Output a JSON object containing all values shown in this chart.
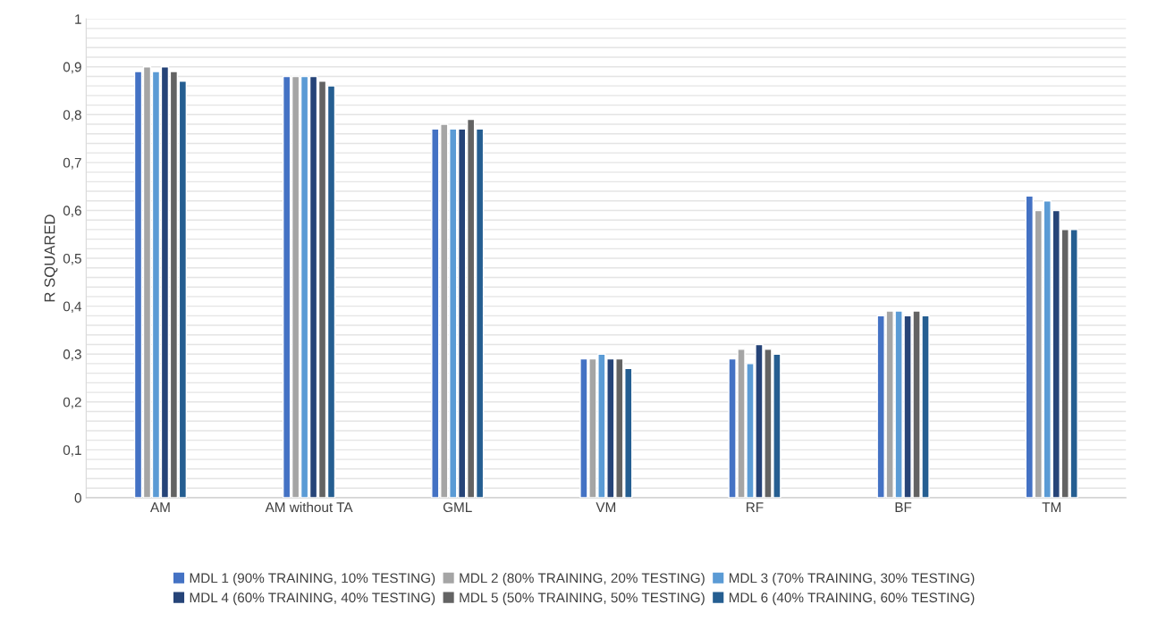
{
  "chart_data": {
    "type": "bar",
    "ylabel": "R SQUARED",
    "categories": [
      "AM",
      "AM without TA",
      "GML",
      "VM",
      "RF",
      "BF",
      "TM"
    ],
    "series": [
      {
        "name": "MDL 1 (90% TRAINING, 10% TESTING)",
        "color": "#4472c4",
        "values": [
          0.89,
          0.88,
          0.77,
          0.29,
          0.29,
          0.38,
          0.63
        ]
      },
      {
        "name": "MDL 2 (80% TRAINING, 20% TESTING)",
        "color": "#a5a5a5",
        "values": [
          0.9,
          0.88,
          0.78,
          0.29,
          0.31,
          0.39,
          0.6
        ]
      },
      {
        "name": "MDL 3 (70% TRAINING, 30% TESTING)",
        "color": "#5b9bd5",
        "values": [
          0.89,
          0.88,
          0.77,
          0.3,
          0.28,
          0.39,
          0.62
        ]
      },
      {
        "name": "MDL 4 (60% TRAINING, 40% TESTING)",
        "color": "#264478",
        "values": [
          0.9,
          0.88,
          0.77,
          0.29,
          0.32,
          0.38,
          0.6
        ]
      },
      {
        "name": "MDL 5 (50% TRAINING, 50% TESTING)",
        "color": "#636363",
        "values": [
          0.89,
          0.87,
          0.79,
          0.29,
          0.31,
          0.39,
          0.56
        ]
      },
      {
        "name": "MDL 6 (40% TRAINING, 60% TESTING)",
        "color": "#255e91",
        "values": [
          0.87,
          0.86,
          0.77,
          0.27,
          0.3,
          0.38,
          0.56
        ]
      }
    ],
    "ylim": [
      0,
      1
    ],
    "yticks": [
      {
        "value": 0,
        "label": "0"
      },
      {
        "value": 0.02,
        "label": null
      },
      {
        "value": 0.04,
        "label": null
      },
      {
        "value": 0.06,
        "label": null
      },
      {
        "value": 0.08,
        "label": null
      },
      {
        "value": 0.1,
        "label": "0,1"
      },
      {
        "value": 0.12,
        "label": null
      },
      {
        "value": 0.14,
        "label": null
      },
      {
        "value": 0.16,
        "label": null
      },
      {
        "value": 0.18,
        "label": null
      },
      {
        "value": 0.2,
        "label": "0,2"
      },
      {
        "value": 0.22,
        "label": null
      },
      {
        "value": 0.24,
        "label": null
      },
      {
        "value": 0.26,
        "label": null
      },
      {
        "value": 0.28,
        "label": null
      },
      {
        "value": 0.3,
        "label": "0,3"
      },
      {
        "value": 0.32,
        "label": null
      },
      {
        "value": 0.34,
        "label": null
      },
      {
        "value": 0.36,
        "label": null
      },
      {
        "value": 0.38,
        "label": null
      },
      {
        "value": 0.4,
        "label": "0,4"
      },
      {
        "value": 0.42,
        "label": null
      },
      {
        "value": 0.44,
        "label": null
      },
      {
        "value": 0.46,
        "label": null
      },
      {
        "value": 0.48,
        "label": null
      },
      {
        "value": 0.5,
        "label": "0,5"
      },
      {
        "value": 0.52,
        "label": null
      },
      {
        "value": 0.54,
        "label": null
      },
      {
        "value": 0.56,
        "label": null
      },
      {
        "value": 0.58,
        "label": null
      },
      {
        "value": 0.6,
        "label": "0,6"
      },
      {
        "value": 0.62,
        "label": null
      },
      {
        "value": 0.64,
        "label": null
      },
      {
        "value": 0.66,
        "label": null
      },
      {
        "value": 0.68,
        "label": null
      },
      {
        "value": 0.7,
        "label": "0,7"
      },
      {
        "value": 0.72,
        "label": null
      },
      {
        "value": 0.74,
        "label": null
      },
      {
        "value": 0.76,
        "label": null
      },
      {
        "value": 0.78,
        "label": null
      },
      {
        "value": 0.8,
        "label": "0,8"
      },
      {
        "value": 0.82,
        "label": null
      },
      {
        "value": 0.84,
        "label": null
      },
      {
        "value": 0.86,
        "label": null
      },
      {
        "value": 0.88,
        "label": null
      },
      {
        "value": 0.9,
        "label": "0,9"
      },
      {
        "value": 0.92,
        "label": null
      },
      {
        "value": 0.94,
        "label": null
      },
      {
        "value": 0.96,
        "label": null
      },
      {
        "value": 0.98,
        "label": null
      },
      {
        "value": 1,
        "label": "1"
      }
    ],
    "grid": "y",
    "legend": "bottom"
  }
}
